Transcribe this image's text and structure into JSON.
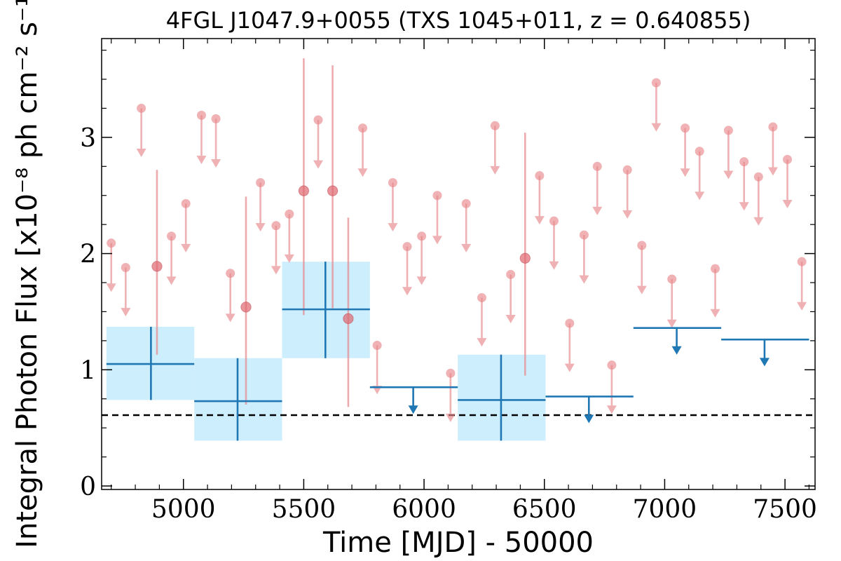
{
  "chart_data": {
    "type": "scatter",
    "title": "4FGL J1047.9+0055 (TXS 1045+011, z = 0.640855)",
    "xlabel": "Time [MJD] - 50000",
    "ylabel": "Integral Photon Flux [x10⁻⁸ ph cm⁻² s⁻¹]",
    "xlim": [
      4660,
      7625
    ],
    "ylim": [
      -0.03,
      3.85
    ],
    "xticks": [
      5000,
      5500,
      6000,
      6500,
      7000,
      7500
    ],
    "yticks": [
      0,
      1,
      2,
      3
    ],
    "grid": false,
    "mean_flux_line": 0.61,
    "binned_detections": [
      {
        "x": 4865,
        "x_lo": 4680,
        "x_hi": 5045,
        "y": 1.05,
        "y_lo": 0.74,
        "y_hi": 1.37
      },
      {
        "x": 5225,
        "x_lo": 5045,
        "x_hi": 5410,
        "y": 0.73,
        "y_lo": 0.39,
        "y_hi": 1.1
      },
      {
        "x": 5590,
        "x_lo": 5410,
        "x_hi": 5775,
        "y": 1.52,
        "y_lo": 1.1,
        "y_hi": 1.93
      },
      {
        "x": 6320,
        "x_lo": 6140,
        "x_hi": 6505,
        "y": 0.74,
        "y_lo": 0.39,
        "y_hi": 1.13
      }
    ],
    "binned_upper_limits": [
      {
        "x": 5955,
        "x_lo": 5775,
        "x_hi": 6140,
        "y": 0.85
      },
      {
        "x": 6685,
        "x_lo": 6505,
        "x_hi": 6870,
        "y": 0.77
      },
      {
        "x": 7050,
        "x_lo": 6870,
        "x_hi": 7235,
        "y": 1.36
      },
      {
        "x": 7415,
        "x_lo": 7235,
        "x_hi": 7600,
        "y": 1.26
      }
    ],
    "short_detections": [
      {
        "x": 4890,
        "y": 1.89,
        "y_lo": 1.13,
        "y_hi": 2.72
      },
      {
        "x": 5260,
        "y": 1.54,
        "y_lo": 0.7,
        "y_hi": 2.49
      },
      {
        "x": 5500,
        "y": 2.54,
        "y_lo": 1.47,
        "y_hi": 3.68
      },
      {
        "x": 5620,
        "y": 2.54,
        "y_lo": 1.53,
        "y_hi": 3.62
      },
      {
        "x": 5685,
        "y": 1.44,
        "y_lo": 0.68,
        "y_hi": 2.31
      },
      {
        "x": 6420,
        "y": 1.96,
        "y_lo": 0.95,
        "y_hi": 3.04
      }
    ],
    "short_upper_limits": [
      {
        "x": 4700,
        "y": 2.09
      },
      {
        "x": 4760,
        "y": 1.88
      },
      {
        "x": 4825,
        "y": 3.25
      },
      {
        "x": 4950,
        "y": 2.15
      },
      {
        "x": 5010,
        "y": 2.43
      },
      {
        "x": 5075,
        "y": 3.19
      },
      {
        "x": 5135,
        "y": 3.16
      },
      {
        "x": 5195,
        "y": 1.83
      },
      {
        "x": 5320,
        "y": 2.61
      },
      {
        "x": 5385,
        "y": 2.24
      },
      {
        "x": 5440,
        "y": 2.34
      },
      {
        "x": 5560,
        "y": 3.15
      },
      {
        "x": 5745,
        "y": 3.08
      },
      {
        "x": 5805,
        "y": 1.21
      },
      {
        "x": 5870,
        "y": 2.61
      },
      {
        "x": 5930,
        "y": 2.06
      },
      {
        "x": 5990,
        "y": 2.15
      },
      {
        "x": 6055,
        "y": 2.5
      },
      {
        "x": 6110,
        "y": 0.97
      },
      {
        "x": 6175,
        "y": 2.43
      },
      {
        "x": 6240,
        "y": 1.62
      },
      {
        "x": 6295,
        "y": 3.1
      },
      {
        "x": 6360,
        "y": 1.82
      },
      {
        "x": 6480,
        "y": 2.67
      },
      {
        "x": 6540,
        "y": 2.28
      },
      {
        "x": 6605,
        "y": 1.4
      },
      {
        "x": 6665,
        "y": 2.16
      },
      {
        "x": 6720,
        "y": 2.75
      },
      {
        "x": 6780,
        "y": 1.04
      },
      {
        "x": 6845,
        "y": 2.72
      },
      {
        "x": 6905,
        "y": 2.07
      },
      {
        "x": 6965,
        "y": 3.47
      },
      {
        "x": 7030,
        "y": 1.78
      },
      {
        "x": 7085,
        "y": 3.08
      },
      {
        "x": 7145,
        "y": 2.88
      },
      {
        "x": 7210,
        "y": 1.87
      },
      {
        "x": 7265,
        "y": 3.06
      },
      {
        "x": 7330,
        "y": 2.79
      },
      {
        "x": 7390,
        "y": 2.66
      },
      {
        "x": 7450,
        "y": 3.09
      },
      {
        "x": 7510,
        "y": 2.81
      },
      {
        "x": 7570,
        "y": 1.93
      }
    ],
    "colors": {
      "binned": "#1f77b4",
      "binned_band": "#cdeefc",
      "short": "#e8888c",
      "mean_line": "#000000",
      "axes": "#000000"
    }
  }
}
